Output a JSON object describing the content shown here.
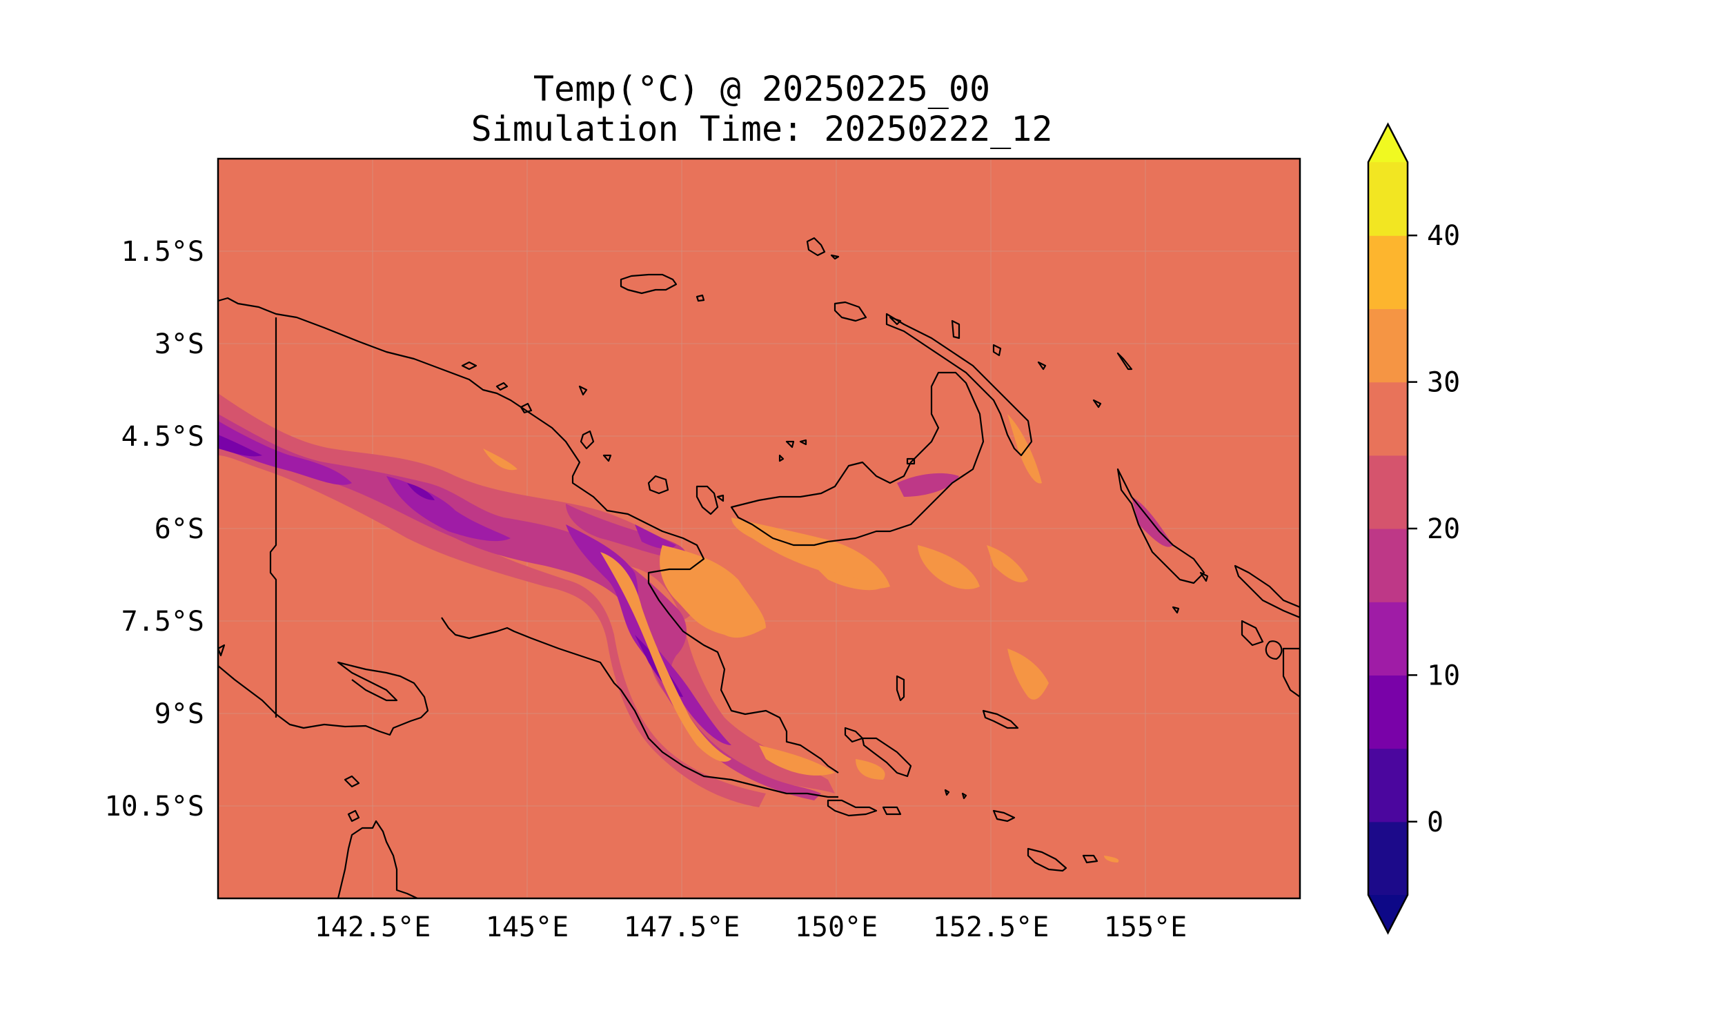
{
  "title": {
    "line1": "Temp(°C) @ 20250225_00",
    "line2": "Simulation Time: 20250222_12"
  },
  "map": {
    "background_color": "#e8735a",
    "x_ticks": [
      "142.5°E",
      "145°E",
      "147.5°E",
      "150°E",
      "152.5°E",
      "155°E"
    ],
    "y_ticks": [
      "1.5°S",
      "3°S",
      "4.5°S",
      "6°S",
      "7.5°S",
      "9°S",
      "10.5°S"
    ],
    "lon_range": [
      140.0,
      157.5
    ],
    "lat_range": [
      -12.0,
      0.0
    ]
  },
  "colorbar": {
    "tick_labels": [
      "0",
      "10",
      "20",
      "30",
      "40"
    ],
    "tick_values": [
      0,
      10,
      20,
      30,
      40
    ],
    "range": [
      -5,
      45
    ],
    "levels": [
      {
        "from": -5,
        "to": 0,
        "color": "#1c0a8a"
      },
      {
        "from": 0,
        "to": 5,
        "color": "#4b069e"
      },
      {
        "from": 5,
        "to": 10,
        "color": "#7902a8"
      },
      {
        "from": 10,
        "to": 15,
        "color": "#9f1ca6"
      },
      {
        "from": 15,
        "to": 20,
        "color": "#be3887"
      },
      {
        "from": 20,
        "to": 25,
        "color": "#d5546d"
      },
      {
        "from": 25,
        "to": 30,
        "color": "#e8735a"
      },
      {
        "from": 30,
        "to": 35,
        "color": "#f59544"
      },
      {
        "from": 35,
        "to": 40,
        "color": "#fdb52e"
      },
      {
        "from": 40,
        "to": 45,
        "color": "#f2e622"
      }
    ],
    "under_color": "#0d0887",
    "over_color": "#f0f921"
  }
}
